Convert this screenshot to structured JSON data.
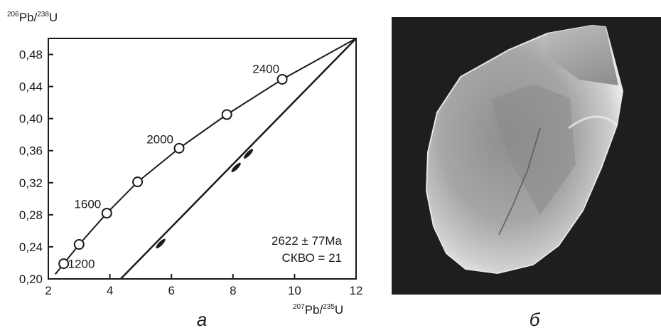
{
  "chart_data": {
    "type": "scatter",
    "xlabel": {
      "sup": "207",
      "text": "Pb/",
      "sup2": "235",
      "text2": "U"
    },
    "ylabel": {
      "sup": "206",
      "text": "Pb/",
      "sup2": "238",
      "text2": "U"
    },
    "xlim": [
      2,
      12
    ],
    "ylim": [
      0.2,
      0.5
    ],
    "x_ticks": [
      "2",
      "4",
      "6",
      "8",
      "10",
      "12"
    ],
    "y_ticks": [
      "0,20",
      "0,24",
      "0,28",
      "0,32",
      "0,36",
      "0,40",
      "0,44",
      "0,48"
    ],
    "concordia": {
      "points": [
        {
          "x": 2.5,
          "y": 0.219,
          "label": "1200"
        },
        {
          "x": 3.0,
          "y": 0.243,
          "label": ""
        },
        {
          "x": 3.9,
          "y": 0.282,
          "label": "1600"
        },
        {
          "x": 4.9,
          "y": 0.321,
          "label": ""
        },
        {
          "x": 6.25,
          "y": 0.363,
          "label": "2000"
        },
        {
          "x": 7.8,
          "y": 0.405,
          "label": ""
        },
        {
          "x": 9.6,
          "y": 0.449,
          "label": "2400"
        }
      ],
      "end": {
        "x": 12,
        "y": 0.5
      }
    },
    "discordia": {
      "x0": 4.35,
      "y0": 0.2,
      "x1": 12,
      "y1": 0.5
    },
    "analyses": [
      {
        "x": 5.65,
        "y": 0.244
      },
      {
        "x": 8.1,
        "y": 0.339
      },
      {
        "x": 8.5,
        "y": 0.356
      }
    ],
    "annotation": [
      "2622 ± 77Ma",
      "СКВО = 21"
    ],
    "panel_label": "а"
  },
  "photo": {
    "panel_label": "б",
    "background": "#1e1e1e"
  }
}
